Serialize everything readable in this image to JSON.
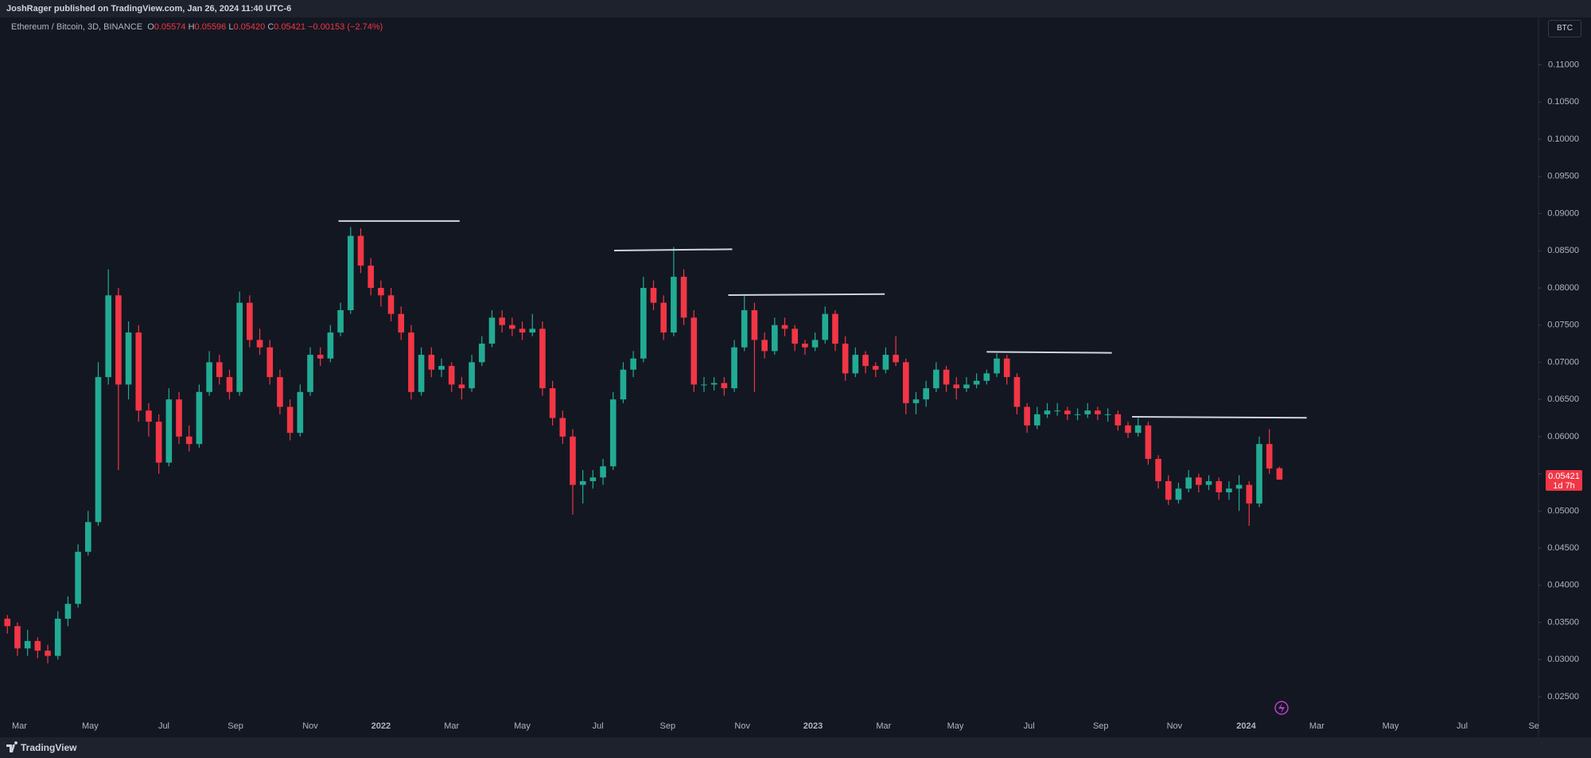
{
  "header": {
    "publisher": "JoshRager published on TradingView.com, Jan 26, 2024 11:40 UTC-6"
  },
  "legend": {
    "symbol": "Ethereum / Bitcoin, 3D, BINANCE",
    "o_label": "O",
    "o": "0.05574",
    "h_label": "H",
    "h": "0.05596",
    "l_label": "L",
    "l": "0.05420",
    "c_label": "C",
    "c": "0.05421",
    "change": "−0.00153 (−2.74%)"
  },
  "currency_button": "BTC",
  "footer": {
    "brand": "TradingView"
  },
  "chart_data": {
    "type": "candlestick",
    "up_color": "#22ab94",
    "down_color": "#f23645",
    "line_color": "#d1d4dc",
    "xlim": [
      -0.1,
      151.5
    ],
    "ylim": [
      0.02254,
      0.11327
    ],
    "yticks": [
      {
        "value": 0.025,
        "label": "0.02500"
      },
      {
        "value": 0.03,
        "label": "0.03000"
      },
      {
        "value": 0.035,
        "label": "0.03500"
      },
      {
        "value": 0.04,
        "label": "0.04000"
      },
      {
        "value": 0.045,
        "label": "0.04500"
      },
      {
        "value": 0.05,
        "label": "0.05000"
      },
      {
        "value": 0.055,
        "label": "0.05500"
      },
      {
        "value": 0.06,
        "label": "0.06000"
      },
      {
        "value": 0.065,
        "label": "0.06500"
      },
      {
        "value": 0.07,
        "label": "0.07000"
      },
      {
        "value": 0.075,
        "label": "0.07500"
      },
      {
        "value": 0.08,
        "label": "0.08000"
      },
      {
        "value": 0.085,
        "label": "0.08500"
      },
      {
        "value": 0.09,
        "label": "0.09000"
      },
      {
        "value": 0.095,
        "label": "0.09500"
      },
      {
        "value": 0.1,
        "label": "0.10000"
      },
      {
        "value": 0.105,
        "label": "0.10500"
      },
      {
        "value": 0.11,
        "label": "0.11000"
      }
    ],
    "xticks": [
      {
        "value": 1.2,
        "label": "Mar"
      },
      {
        "value": 8.2,
        "label": "May"
      },
      {
        "value": 15.5,
        "label": "Jul"
      },
      {
        "value": 22.6,
        "label": "Sep"
      },
      {
        "value": 30,
        "label": "Nov"
      },
      {
        "value": 37,
        "label": "2022"
      },
      {
        "value": 44,
        "label": "Mar"
      },
      {
        "value": 51,
        "label": "May"
      },
      {
        "value": 58.5,
        "label": "Jul"
      },
      {
        "value": 65.4,
        "label": "Sep"
      },
      {
        "value": 72.8,
        "label": "Nov"
      },
      {
        "value": 79.8,
        "label": "2023"
      },
      {
        "value": 86.8,
        "label": "Mar"
      },
      {
        "value": 93.9,
        "label": "May"
      },
      {
        "value": 101.2,
        "label": "Jul"
      },
      {
        "value": 108.3,
        "label": "Sep"
      },
      {
        "value": 115.6,
        "label": "Nov"
      },
      {
        "value": 122.7,
        "label": "2024"
      },
      {
        "value": 129.7,
        "label": "Mar"
      },
      {
        "value": 137,
        "label": "May"
      },
      {
        "value": 144.1,
        "label": "Jul"
      },
      {
        "value": 151.2,
        "label": "Se"
      }
    ],
    "last_price": {
      "value": 0.05421,
      "label": "0.05421"
    },
    "countdown": "1d 7h",
    "trend_lines": [
      {
        "x": [
          32.8,
          44.8
        ],
        "y": [
          0.089,
          0.089
        ]
      },
      {
        "x": [
          60.1,
          71.8
        ],
        "y": [
          0.08503,
          0.0852
        ]
      },
      {
        "x": [
          71.4,
          86.9
        ],
        "y": [
          0.07903,
          0.07917
        ]
      },
      {
        "x": [
          97,
          109.4
        ],
        "y": [
          0.07139,
          0.07126
        ]
      },
      {
        "x": [
          111.4,
          128.7
        ],
        "y": [
          0.06266,
          0.06253
        ]
      }
    ],
    "candles": [
      [
        0.0355,
        0.036,
        0.0335,
        0.0345
      ],
      [
        0.0345,
        0.035,
        0.0305,
        0.0315
      ],
      [
        0.0315,
        0.034,
        0.0305,
        0.0325
      ],
      [
        0.0325,
        0.033,
        0.0302,
        0.0312
      ],
      [
        0.0312,
        0.032,
        0.0295,
        0.0305
      ],
      [
        0.0305,
        0.0365,
        0.03,
        0.0355
      ],
      [
        0.0355,
        0.0385,
        0.0345,
        0.0375
      ],
      [
        0.0375,
        0.0455,
        0.037,
        0.0445
      ],
      [
        0.0445,
        0.05,
        0.044,
        0.0485
      ],
      [
        0.0485,
        0.07,
        0.048,
        0.068
      ],
      [
        0.068,
        0.0825,
        0.067,
        0.079
      ],
      [
        0.079,
        0.08,
        0.0555,
        0.067
      ],
      [
        0.067,
        0.0755,
        0.065,
        0.074
      ],
      [
        0.074,
        0.075,
        0.062,
        0.0635
      ],
      [
        0.0635,
        0.0645,
        0.06,
        0.062
      ],
      [
        0.062,
        0.063,
        0.055,
        0.0565
      ],
      [
        0.0565,
        0.0665,
        0.056,
        0.065
      ],
      [
        0.065,
        0.066,
        0.059,
        0.06
      ],
      [
        0.06,
        0.0615,
        0.058,
        0.059
      ],
      [
        0.059,
        0.067,
        0.0585,
        0.066
      ],
      [
        0.066,
        0.0715,
        0.0655,
        0.07
      ],
      [
        0.07,
        0.071,
        0.067,
        0.068
      ],
      [
        0.068,
        0.069,
        0.065,
        0.066
      ],
      [
        0.066,
        0.0795,
        0.0655,
        0.078
      ],
      [
        0.078,
        0.079,
        0.072,
        0.073
      ],
      [
        0.073,
        0.0745,
        0.071,
        0.072
      ],
      [
        0.072,
        0.073,
        0.067,
        0.068
      ],
      [
        0.068,
        0.069,
        0.063,
        0.064
      ],
      [
        0.064,
        0.065,
        0.0595,
        0.0605
      ],
      [
        0.0605,
        0.067,
        0.06,
        0.066
      ],
      [
        0.066,
        0.072,
        0.0655,
        0.071
      ],
      [
        0.071,
        0.072,
        0.0695,
        0.0705
      ],
      [
        0.0705,
        0.075,
        0.07,
        0.074
      ],
      [
        0.074,
        0.078,
        0.0735,
        0.077
      ],
      [
        0.077,
        0.0882,
        0.0765,
        0.087
      ],
      [
        0.087,
        0.088,
        0.082,
        0.083
      ],
      [
        0.083,
        0.084,
        0.079,
        0.08
      ],
      [
        0.08,
        0.081,
        0.0775,
        0.079
      ],
      [
        0.079,
        0.08,
        0.0755,
        0.0765
      ],
      [
        0.0765,
        0.0775,
        0.073,
        0.074
      ],
      [
        0.074,
        0.075,
        0.065,
        0.066
      ],
      [
        0.066,
        0.072,
        0.0655,
        0.071
      ],
      [
        0.071,
        0.072,
        0.068,
        0.069
      ],
      [
        0.069,
        0.0705,
        0.068,
        0.0695
      ],
      [
        0.0695,
        0.07,
        0.066,
        0.067
      ],
      [
        0.067,
        0.068,
        0.065,
        0.0665
      ],
      [
        0.0665,
        0.071,
        0.066,
        0.07
      ],
      [
        0.07,
        0.0735,
        0.0695,
        0.0725
      ],
      [
        0.0725,
        0.077,
        0.072,
        0.076
      ],
      [
        0.076,
        0.077,
        0.074,
        0.075
      ],
      [
        0.075,
        0.076,
        0.0735,
        0.0745
      ],
      [
        0.0745,
        0.0755,
        0.073,
        0.074
      ],
      [
        0.074,
        0.0765,
        0.0735,
        0.0745
      ],
      [
        0.0745,
        0.0755,
        0.0655,
        0.0665
      ],
      [
        0.0665,
        0.0675,
        0.0615,
        0.0625
      ],
      [
        0.0625,
        0.0635,
        0.059,
        0.06
      ],
      [
        0.06,
        0.061,
        0.0495,
        0.0535
      ],
      [
        0.0535,
        0.0555,
        0.051,
        0.054
      ],
      [
        0.054,
        0.0555,
        0.053,
        0.0545
      ],
      [
        0.0545,
        0.057,
        0.0535,
        0.056
      ],
      [
        0.056,
        0.066,
        0.0555,
        0.065
      ],
      [
        0.065,
        0.07,
        0.0645,
        0.069
      ],
      [
        0.069,
        0.0715,
        0.068,
        0.0705
      ],
      [
        0.0705,
        0.0815,
        0.07,
        0.08
      ],
      [
        0.08,
        0.081,
        0.077,
        0.078
      ],
      [
        0.078,
        0.079,
        0.073,
        0.074
      ],
      [
        0.074,
        0.0855,
        0.0735,
        0.0815
      ],
      [
        0.0815,
        0.0825,
        0.075,
        0.076
      ],
      [
        0.076,
        0.077,
        0.066,
        0.067
      ],
      [
        0.067,
        0.068,
        0.066,
        0.067
      ],
      [
        0.067,
        0.068,
        0.0662,
        0.0672
      ],
      [
        0.0672,
        0.068,
        0.0655,
        0.0665
      ],
      [
        0.0665,
        0.073,
        0.066,
        0.072
      ],
      [
        0.072,
        0.079,
        0.0715,
        0.077
      ],
      [
        0.077,
        0.078,
        0.066,
        0.073
      ],
      [
        0.073,
        0.074,
        0.0705,
        0.0715
      ],
      [
        0.0715,
        0.076,
        0.071,
        0.075
      ],
      [
        0.075,
        0.076,
        0.0735,
        0.0745
      ],
      [
        0.0745,
        0.075,
        0.0715,
        0.0725
      ],
      [
        0.0725,
        0.073,
        0.071,
        0.072
      ],
      [
        0.072,
        0.074,
        0.0715,
        0.073
      ],
      [
        0.073,
        0.0775,
        0.0725,
        0.0765
      ],
      [
        0.0765,
        0.077,
        0.0715,
        0.0725
      ],
      [
        0.0725,
        0.0735,
        0.0675,
        0.0685
      ],
      [
        0.0685,
        0.072,
        0.068,
        0.071
      ],
      [
        0.071,
        0.0715,
        0.0685,
        0.0695
      ],
      [
        0.0695,
        0.07,
        0.068,
        0.069
      ],
      [
        0.069,
        0.072,
        0.0685,
        0.071
      ],
      [
        0.071,
        0.0735,
        0.0695,
        0.07
      ],
      [
        0.07,
        0.0705,
        0.063,
        0.0645
      ],
      [
        0.0645,
        0.066,
        0.063,
        0.065
      ],
      [
        0.065,
        0.0675,
        0.064,
        0.0665
      ],
      [
        0.0665,
        0.07,
        0.066,
        0.069
      ],
      [
        0.069,
        0.0695,
        0.066,
        0.067
      ],
      [
        0.067,
        0.068,
        0.065,
        0.0665
      ],
      [
        0.0665,
        0.068,
        0.066,
        0.067
      ],
      [
        0.067,
        0.0685,
        0.0665,
        0.0675
      ],
      [
        0.0675,
        0.069,
        0.067,
        0.0685
      ],
      [
        0.0685,
        0.0712,
        0.068,
        0.0705
      ],
      [
        0.0705,
        0.071,
        0.067,
        0.068
      ],
      [
        0.068,
        0.0685,
        0.063,
        0.064
      ],
      [
        0.064,
        0.0645,
        0.0605,
        0.0615
      ],
      [
        0.0615,
        0.064,
        0.061,
        0.063
      ],
      [
        0.063,
        0.0645,
        0.0625,
        0.0635
      ],
      [
        0.0635,
        0.0645,
        0.0628,
        0.0635
      ],
      [
        0.0635,
        0.064,
        0.0622,
        0.063
      ],
      [
        0.063,
        0.0638,
        0.0622,
        0.063
      ],
      [
        0.063,
        0.0645,
        0.0625,
        0.0635
      ],
      [
        0.0635,
        0.064,
        0.0622,
        0.063
      ],
      [
        0.063,
        0.0638,
        0.062,
        0.063
      ],
      [
        0.063,
        0.0635,
        0.0608,
        0.0615
      ],
      [
        0.0615,
        0.062,
        0.0598,
        0.0605
      ],
      [
        0.0605,
        0.0625,
        0.06,
        0.0615
      ],
      [
        0.0615,
        0.062,
        0.0562,
        0.057
      ],
      [
        0.057,
        0.0575,
        0.053,
        0.054
      ],
      [
        0.054,
        0.0548,
        0.0508,
        0.0515
      ],
      [
        0.0515,
        0.0538,
        0.051,
        0.053
      ],
      [
        0.053,
        0.0555,
        0.0525,
        0.0545
      ],
      [
        0.0545,
        0.055,
        0.0525,
        0.0535
      ],
      [
        0.0535,
        0.0548,
        0.0528,
        0.054
      ],
      [
        0.054,
        0.0545,
        0.0515,
        0.0525
      ],
      [
        0.0525,
        0.054,
        0.0515,
        0.053
      ],
      [
        0.053,
        0.0548,
        0.05,
        0.0535
      ],
      [
        0.0535,
        0.054,
        0.048,
        0.051
      ],
      [
        0.051,
        0.06,
        0.0505,
        0.059
      ],
      [
        0.059,
        0.061,
        0.055,
        0.0557
      ],
      [
        0.05574,
        0.05596,
        0.0542,
        0.05421
      ]
    ]
  }
}
